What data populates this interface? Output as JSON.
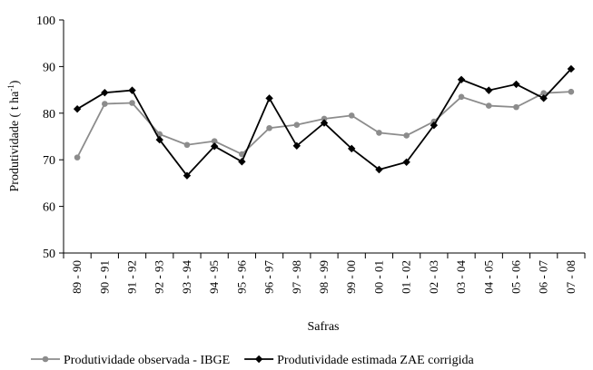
{
  "chart_data": {
    "type": "line",
    "xlabel": "Safras",
    "ylabel": "Produtividade ( t ha",
    "ylabel_sup": "-1",
    "ylabel_end": ")",
    "ylim": [
      50,
      100
    ],
    "yticks": [
      50,
      60,
      70,
      80,
      90,
      100
    ],
    "grid": false,
    "legend_position": "bottom",
    "categories": [
      "89 - 90",
      "90 - 91",
      "91 - 92",
      "92 - 93",
      "93 - 94",
      "94 - 95",
      "95 - 96",
      "96 - 97",
      "97 - 98",
      "98 - 99",
      "99 - 00",
      "00 - 01",
      "01 - 02",
      "02 - 03",
      "03 - 04",
      "04 - 05",
      "05 - 06",
      "06 - 07",
      "07 - 08"
    ],
    "series": [
      {
        "name": "Produtividade observada - IBGE",
        "color": "#8c8c8c",
        "marker": "circle",
        "values": [
          70.5,
          82.0,
          82.2,
          75.5,
          73.2,
          74.0,
          71.2,
          76.8,
          77.5,
          78.8,
          79.5,
          75.8,
          75.2,
          78.2,
          83.5,
          81.6,
          81.3,
          84.3,
          84.6
        ]
      },
      {
        "name": "Produtividade estimada ZAE corrigida",
        "color": "#000000",
        "marker": "diamond",
        "values": [
          80.9,
          84.4,
          84.9,
          74.3,
          66.6,
          72.9,
          69.6,
          83.2,
          73.0,
          77.9,
          72.4,
          67.9,
          69.5,
          77.4,
          87.2,
          84.9,
          86.2,
          83.2,
          89.5
        ]
      }
    ]
  }
}
